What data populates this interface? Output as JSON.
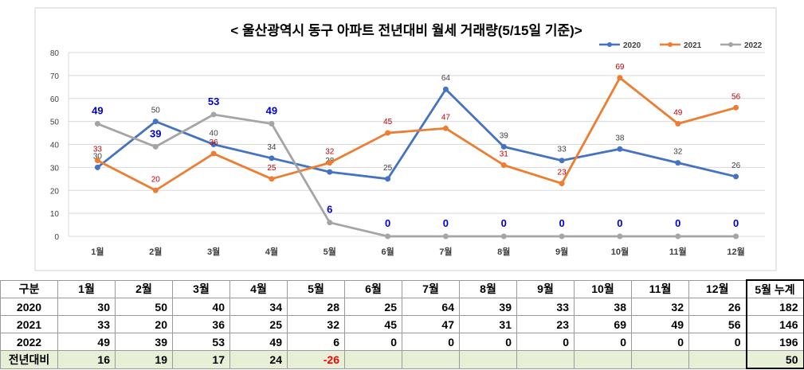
{
  "chart_data": {
    "type": "line",
    "title": "< 울산광역시 동구  아파트 전년대비 월세 거래량(5/15일 기준)>",
    "categories": [
      "1월",
      "2월",
      "3월",
      "4월",
      "5월",
      "6월",
      "7월",
      "8월",
      "9월",
      "10월",
      "11월",
      "12월"
    ],
    "ylim": [
      0,
      80
    ],
    "yticks": [
      "0",
      "10",
      "20",
      "30",
      "40",
      "50",
      "60",
      "70",
      "80"
    ],
    "grid": true,
    "legend_position": "top-right",
    "series": [
      {
        "name": "2020",
        "color": "#4472c4",
        "values": [
          30,
          50,
          40,
          34,
          28,
          25,
          64,
          39,
          33,
          38,
          32,
          26
        ]
      },
      {
        "name": "2021",
        "color": "#ed7d31",
        "values": [
          33,
          20,
          36,
          25,
          32,
          45,
          47,
          31,
          23,
          69,
          49,
          56
        ]
      },
      {
        "name": "2022",
        "color": "#a5a5a5",
        "values": [
          49,
          39,
          53,
          49,
          6,
          0,
          0,
          0,
          0,
          0,
          0,
          0
        ]
      }
    ],
    "label_colors": {
      "2020": "#404040",
      "2021": "#c00000",
      "2022": "#0000cc"
    }
  },
  "table": {
    "headers": [
      "구분",
      "1월",
      "2월",
      "3월",
      "4월",
      "5월",
      "6월",
      "7월",
      "8월",
      "9월",
      "10월",
      "11월",
      "12월",
      "5월 누계"
    ],
    "rows": [
      {
        "label": "2020",
        "cells": [
          "30",
          "50",
          "40",
          "34",
          "28",
          "25",
          "64",
          "39",
          "33",
          "38",
          "32",
          "26",
          "182"
        ]
      },
      {
        "label": "2021",
        "cells": [
          "33",
          "20",
          "36",
          "25",
          "32",
          "45",
          "47",
          "31",
          "23",
          "69",
          "49",
          "56",
          "146"
        ]
      },
      {
        "label": "2022",
        "cells": [
          "49",
          "39",
          "53",
          "49",
          "6",
          "0",
          "0",
          "0",
          "0",
          "0",
          "0",
          "0",
          "196"
        ]
      },
      {
        "label": "전년대비",
        "cells": [
          "16",
          "19",
          "17",
          "24",
          "-26",
          "",
          "",
          "",
          "",
          "",
          "",
          "",
          "50"
        ]
      }
    ]
  }
}
